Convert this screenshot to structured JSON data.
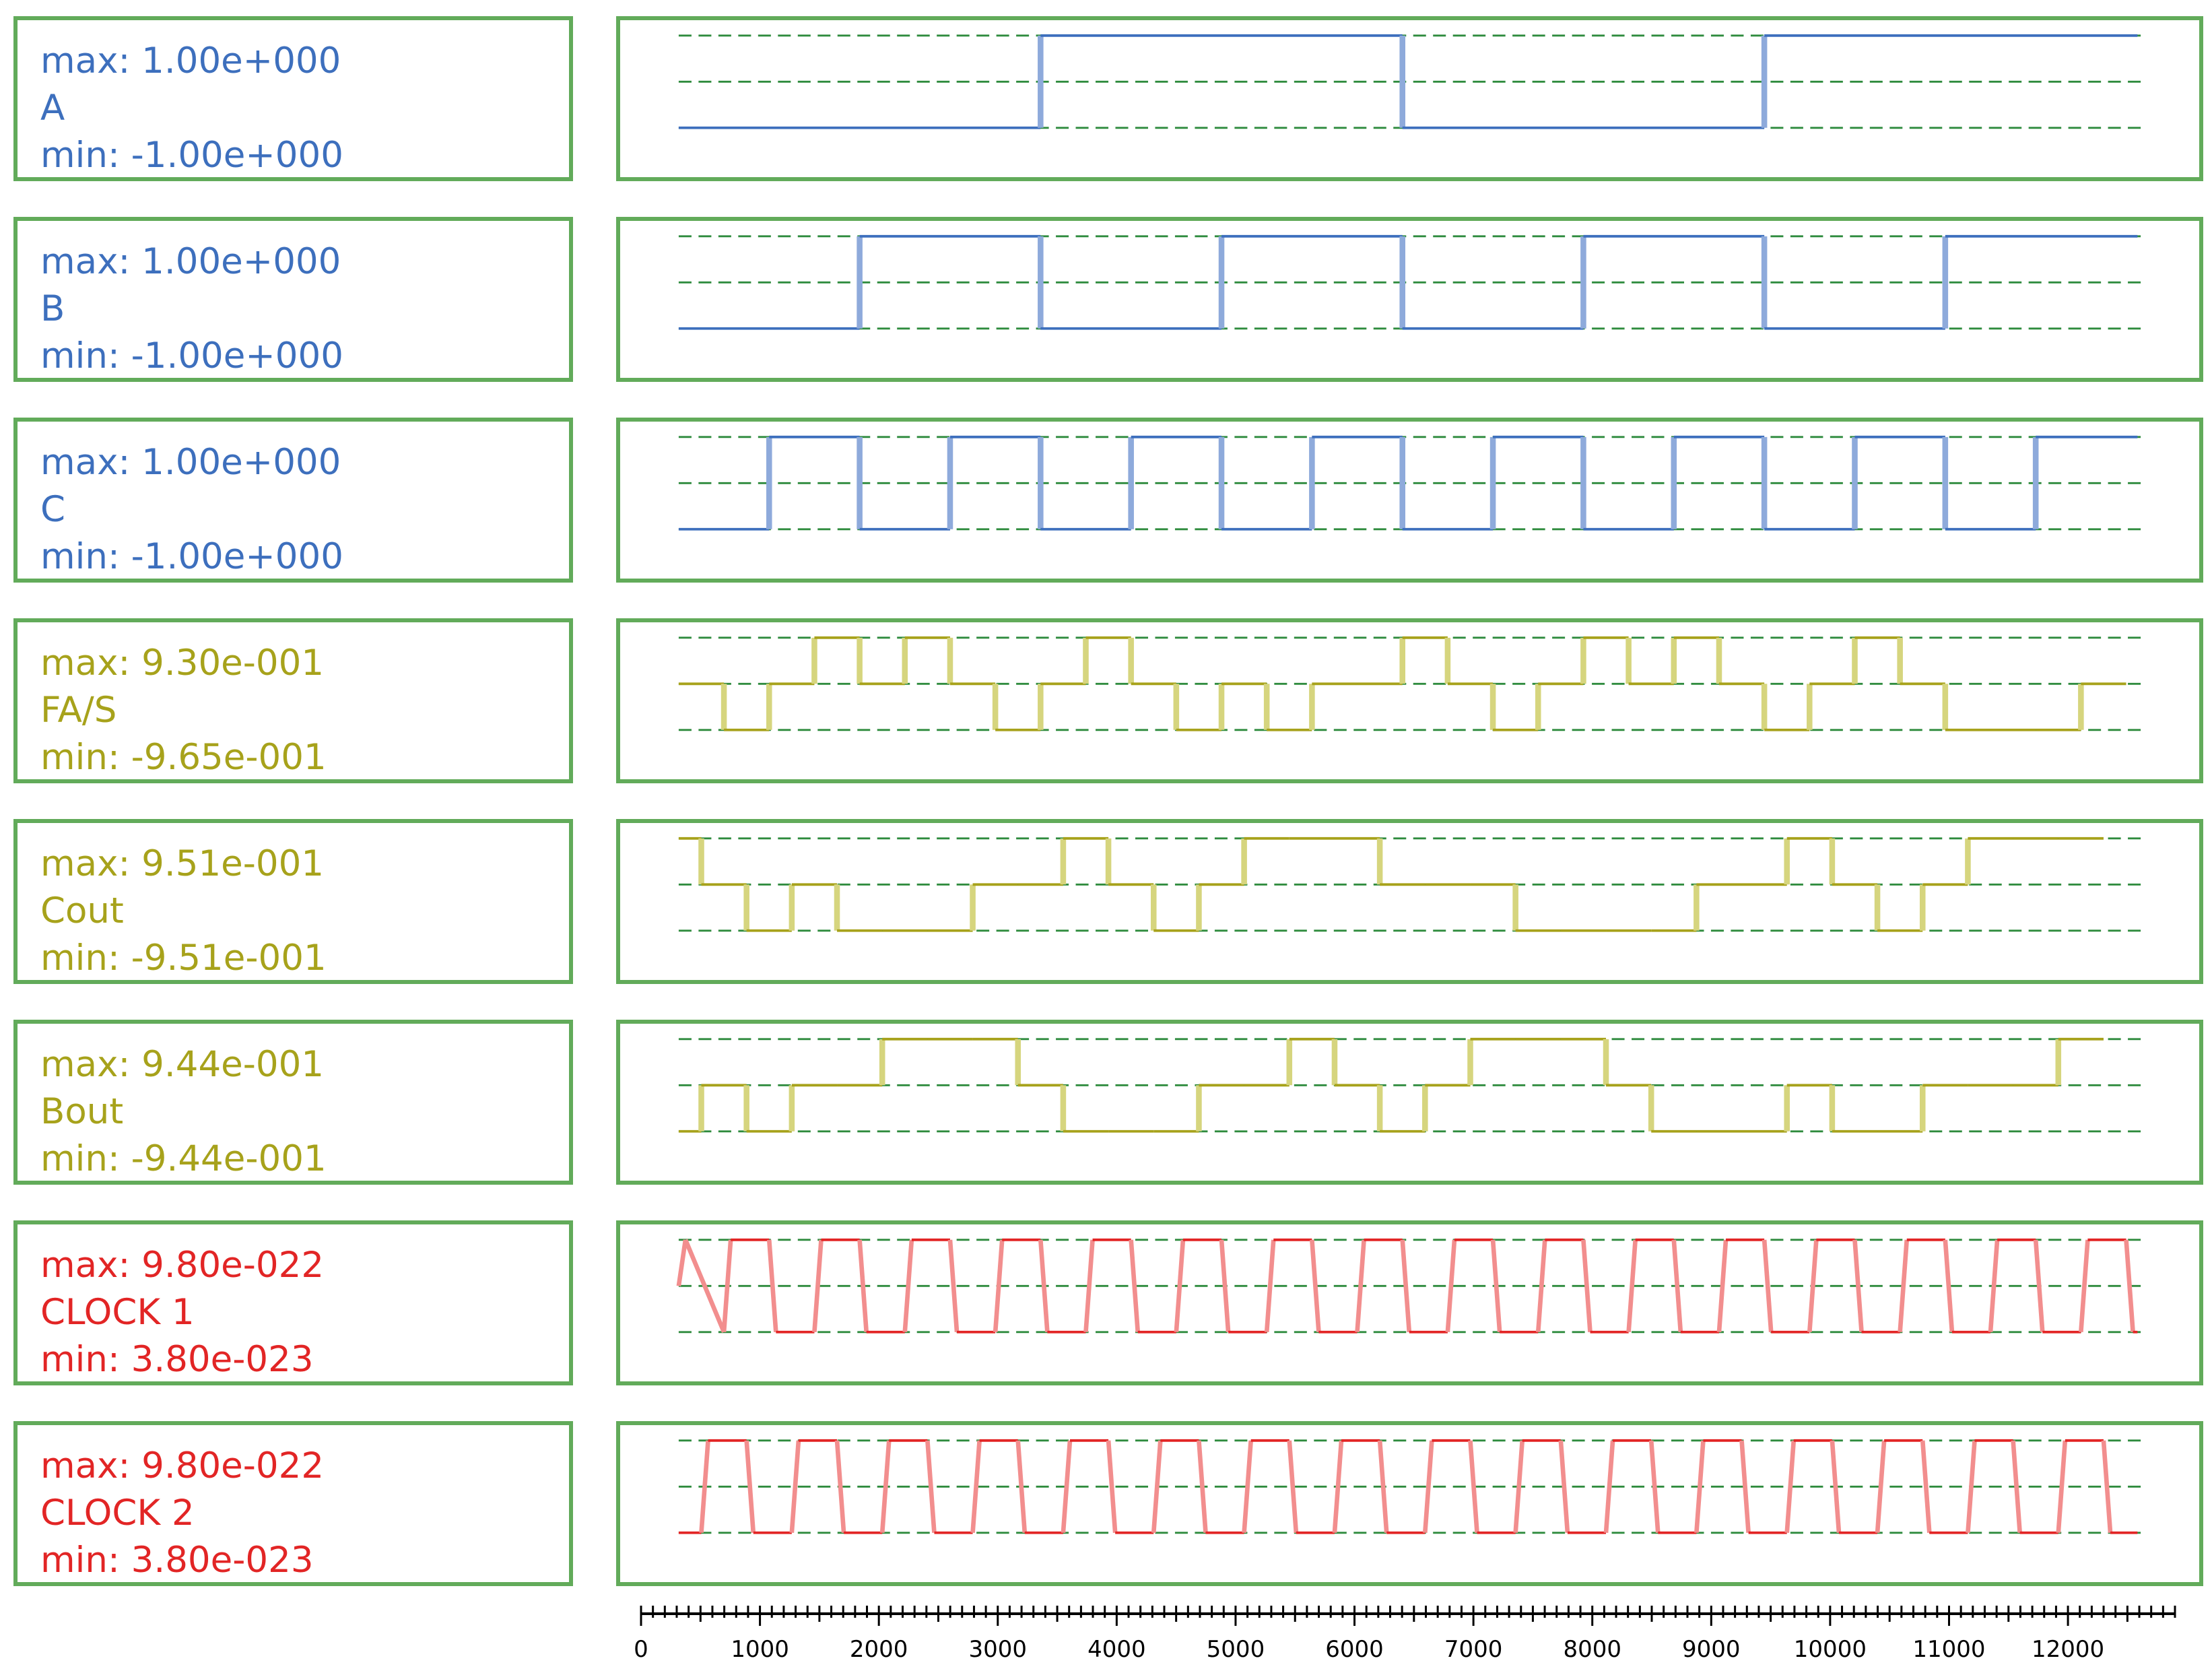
{
  "chart_data": {
    "type": "line",
    "subtype": "digital-waveform-stack",
    "x_axis": {
      "range": [
        0,
        12900
      ],
      "tick_labels": [
        "0",
        "1000",
        "2000",
        "3000",
        "4000",
        "5000",
        "6000",
        "7000",
        "8000",
        "9000",
        "10000",
        "11000",
        "12000"
      ],
      "tick_values": [
        0,
        1000,
        2000,
        3000,
        4000,
        5000,
        6000,
        7000,
        8000,
        9000,
        10000,
        11000,
        12000
      ]
    },
    "grid": true,
    "colors": {
      "blue": "#3d6fbd",
      "blue_edge": "#8eaadb",
      "olive": "#a7a21b",
      "olive_edge": "#d6d57e",
      "red": "#e22525",
      "red_edge": "#f28e8e",
      "grid": "#2e8b3d",
      "frame": "#62ab5a"
    },
    "series": [
      {
        "name": "A",
        "max_label": "max: 1.00e+000",
        "min_label": "min: -1.00e+000",
        "y_range": [
          -1.0,
          1.0
        ],
        "color": "blue",
        "x": [
          0,
          3200,
          6400,
          9600,
          12900
        ],
        "y": [
          -1,
          1,
          -1,
          1,
          1
        ]
      },
      {
        "name": "B",
        "max_label": "max: 1.00e+000",
        "min_label": "min: -1.00e+000",
        "y_range": [
          -1.0,
          1.0
        ],
        "color": "blue",
        "x": [
          0,
          1600,
          3200,
          4800,
          6400,
          8000,
          9600,
          11200,
          12900
        ],
        "y": [
          -1,
          1,
          -1,
          1,
          -1,
          1,
          -1,
          1,
          1
        ]
      },
      {
        "name": "C",
        "max_label": "max: 1.00e+000",
        "min_label": "min: -1.00e+000",
        "y_range": [
          -1.0,
          1.0
        ],
        "color": "blue",
        "x": [
          0,
          800,
          1600,
          2400,
          3200,
          4000,
          4800,
          5600,
          6400,
          7200,
          8000,
          8800,
          9600,
          10400,
          11200,
          12000,
          12900
        ],
        "y": [
          -1,
          1,
          -1,
          1,
          -1,
          1,
          -1,
          1,
          -1,
          1,
          -1,
          1,
          -1,
          1,
          -1,
          1,
          1
        ]
      },
      {
        "name": "FA/S",
        "max_label": "max: 9.30e-001",
        "min_label": "min: -9.65e-001",
        "y_range": [
          -0.965,
          0.93
        ],
        "color": "olive",
        "x": [
          0,
          400,
          800,
          1200,
          1600,
          2000,
          2400,
          2800,
          3200,
          3600,
          4000,
          4400,
          4800,
          5200,
          5600,
          6000,
          6400,
          6800,
          7200,
          7600,
          8000,
          8400,
          8800,
          9200,
          9600,
          10000,
          10400,
          10800,
          11200,
          11600,
          12000,
          12400,
          12800
        ],
        "y": [
          0,
          -1,
          0,
          1,
          0,
          1,
          0,
          -1,
          0,
          1,
          0,
          -1,
          0,
          -1,
          0,
          0,
          1,
          0,
          -1,
          0,
          1,
          0,
          1,
          0,
          -1,
          0,
          1,
          0,
          -1,
          -1,
          -1,
          0,
          1
        ]
      },
      {
        "name": "Cout",
        "max_label": "max: 9.51e-001",
        "min_label": "min: -9.51e-001",
        "y_range": [
          -0.951,
          0.951
        ],
        "color": "olive",
        "x": [
          0,
          200,
          600,
          1000,
          1400,
          1800,
          2200,
          2600,
          3000,
          3400,
          3800,
          4200,
          4600,
          5000,
          5400,
          5800,
          6200,
          6600,
          7000,
          7400,
          7800,
          8200,
          8600,
          9000,
          9400,
          9800,
          10200,
          10600,
          11000,
          11400,
          11800,
          12200,
          12600
        ],
        "y": [
          1,
          0,
          -1,
          0,
          -1,
          -1,
          -1,
          0,
          0,
          1,
          0,
          -1,
          0,
          1,
          1,
          1,
          0,
          0,
          0,
          -1,
          -1,
          -1,
          -1,
          0,
          0,
          1,
          0,
          -1,
          0,
          1,
          1,
          1,
          1
        ]
      },
      {
        "name": "Bout",
        "max_label": "max: 9.44e-001",
        "min_label": "min: -9.44e-001",
        "y_range": [
          -0.944,
          0.944
        ],
        "color": "olive",
        "x": [
          0,
          200,
          600,
          1000,
          1400,
          1800,
          2200,
          2600,
          3000,
          3400,
          3800,
          4200,
          4600,
          5000,
          5400,
          5800,
          6200,
          6600,
          7000,
          7400,
          7800,
          8200,
          8600,
          9000,
          9400,
          9800,
          10200,
          10600,
          11000,
          11400,
          11800,
          12200,
          12600
        ],
        "y": [
          -1,
          0,
          -1,
          0,
          0,
          1,
          1,
          1,
          0,
          -1,
          -1,
          -1,
          0,
          0,
          1,
          0,
          -1,
          0,
          1,
          1,
          1,
          0,
          -1,
          -1,
          -1,
          0,
          -1,
          -1,
          0,
          0,
          0,
          1,
          1
        ]
      },
      {
        "name": "CLOCK 1",
        "max_label": "max: 9.80e-022",
        "min_label": "min: 3.80e-023",
        "y_range": [
          3.8e-23,
          9.8e-22
        ],
        "color": "red",
        "period": 800,
        "edge": 60,
        "phase": 0,
        "start_level": "mid"
      },
      {
        "name": "CLOCK 2",
        "max_label": "max: 9.80e-022",
        "min_label": "min: 3.80e-023",
        "y_range": [
          3.8e-23,
          9.8e-22
        ],
        "color": "red",
        "period": 800,
        "edge": 60,
        "phase": 200,
        "start_level": "low"
      }
    ]
  }
}
